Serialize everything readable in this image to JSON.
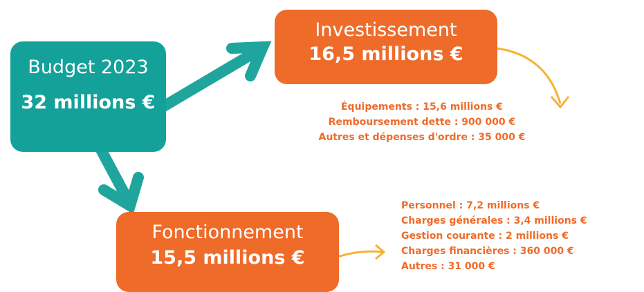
{
  "budget": {
    "title": "Budget 2023",
    "amount": "32 millions €"
  },
  "investissement": {
    "title": "Investissement",
    "amount": "16,5 millions €",
    "details": [
      "Équipements : 15,6 millions €",
      "Remboursement dette : 900 000 €",
      "Autres et dépenses d'ordre : 35 000 €"
    ]
  },
  "fonctionnement": {
    "title": "Fonctionnement",
    "amount": "15,5 millions €",
    "details": [
      "Personnel : 7,2 millions €",
      "Charges générales : 3,4 millions €",
      "Gestion courante : 2 millions €",
      "Charges financières : 360 000 €",
      "Autres : 31 000 €"
    ]
  }
}
